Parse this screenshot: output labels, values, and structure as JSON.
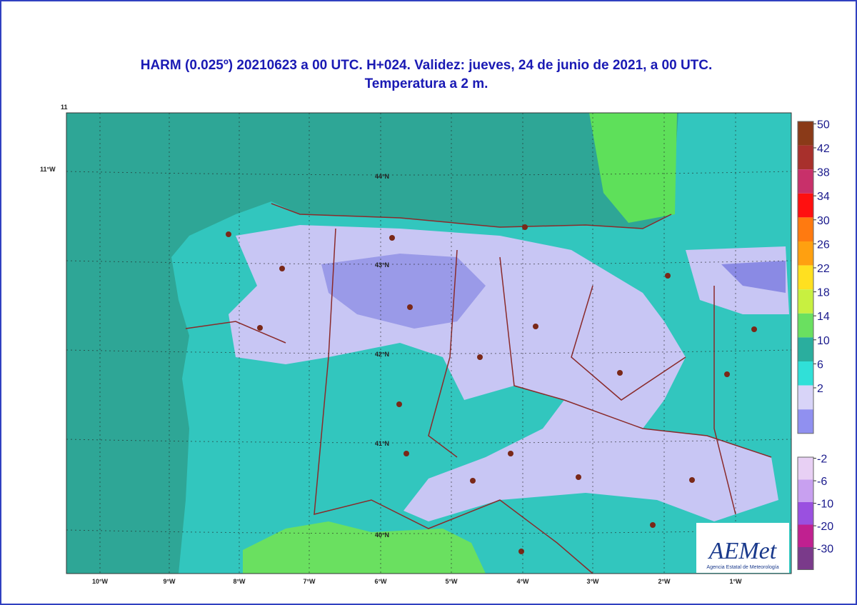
{
  "title": [
    "HARM (0.025º) 20210623 a 00 UTC.  H+024. Validez: jueves, 24 de junio de 2021,  a  00 UTC.",
    "Temperatura a 2 m."
  ],
  "corner_labels": [
    "11",
    "11°W"
  ],
  "lon_labels": [
    "10°W",
    "9°W",
    "8°W",
    "7°W",
    "6°W",
    "5°W",
    "4°W",
    "3°W",
    "2°W",
    "1°W"
  ],
  "lat_labels": [
    "44°N",
    "43°N",
    "42°N",
    "41°N",
    "40°N"
  ],
  "colorbar": {
    "upper": {
      "ticks": [
        50,
        42,
        38,
        34,
        30,
        26,
        22,
        18,
        14,
        10,
        6,
        2
      ],
      "colors": [
        "#8a3a18",
        "#a8302c",
        "#c8306a",
        "#ff1010",
        "#ff7a10",
        "#ffa010",
        "#ffe020",
        "#c8f040",
        "#6ae060",
        "#2aae9e",
        "#30e0d8",
        "#d8d4f8",
        "#9090f0"
      ]
    },
    "lower": {
      "ticks": [
        -2,
        -6,
        -10,
        -20,
        -30
      ],
      "colors": [
        "#e8d0f4",
        "#c8a0f0",
        "#9a50e0",
        "#c02090",
        "#7a3a8a"
      ]
    }
  },
  "logo": {
    "name": "AEMet",
    "subtitle": "Agencia Estatal de Meteorología"
  }
}
